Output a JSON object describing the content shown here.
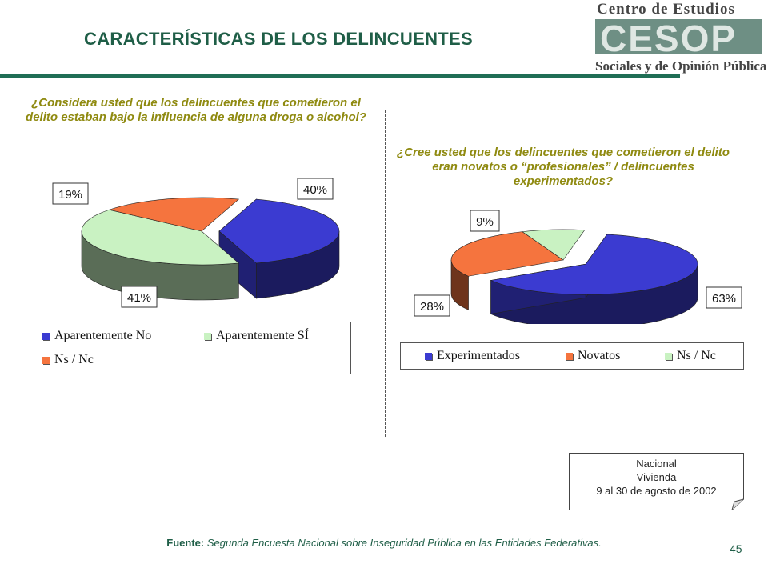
{
  "header": {
    "title": "CARACTERÍSTICAS DE LOS DELINCUENTES"
  },
  "logo": {
    "line1": "Centro de Estudios",
    "mark": "CESOP",
    "line2": "Sociales y de Opinión Pública"
  },
  "chart_data": [
    {
      "type": "pie",
      "title": "¿Considera usted que los delincuentes que cometieron el delito estaban bajo la influencia de alguna droga o alcohol?",
      "slices": [
        {
          "name": "Aparentemente No",
          "value": 40,
          "label": "40%",
          "color": "#3b3bd1"
        },
        {
          "name": "Aparentemente SÍ",
          "value": 41,
          "label": "41%",
          "color": "#c9f2c2"
        },
        {
          "name": "Ns / Nc",
          "value": 19,
          "label": "19%",
          "color": "#f5743e"
        }
      ],
      "legend": [
        "Aparentemente No",
        "Aparentemente SÍ",
        "Ns / Nc"
      ],
      "legend_position": "bottom"
    },
    {
      "type": "pie",
      "title": "¿Cree usted que los delincuentes que cometieron el delito eran novatos o “profesionales” / delincuentes experimentados?",
      "slices": [
        {
          "name": "Experimentados",
          "value": 63,
          "label": "63%",
          "color": "#3b3bd1"
        },
        {
          "name": "Novatos",
          "value": 28,
          "label": "28%",
          "color": "#f5743e"
        },
        {
          "name": "Ns / Nc",
          "value": 9,
          "label": "9%",
          "color": "#c9f2c2"
        }
      ],
      "legend": [
        "Experimentados",
        "Novatos",
        "Ns / Nc"
      ],
      "legend_position": "bottom"
    }
  ],
  "survey": {
    "scope": "Nacional",
    "place": "Vivienda",
    "dates": "9 al 30 de agosto de 2002"
  },
  "source": {
    "label": "Fuente:",
    "text": "Segunda Encuesta Nacional sobre Inseguridad Pública en las Entidades Federativas."
  },
  "page_number": "45"
}
